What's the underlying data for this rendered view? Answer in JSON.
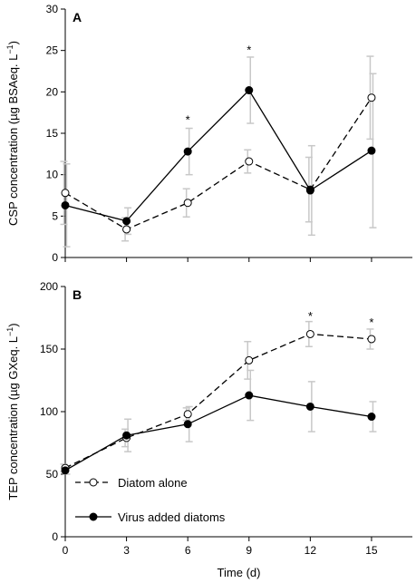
{
  "chart_data": [
    {
      "panel": "A",
      "type": "line",
      "ylabel_main": "CSP concentration (µg BSAeq. L",
      "ylabel_sup": "−1",
      "ylabel_tail": ")",
      "ylim": [
        0,
        30
      ],
      "yticks": [
        0,
        5,
        10,
        15,
        20,
        25,
        30
      ],
      "x": [
        0,
        3,
        6,
        9,
        12,
        15
      ],
      "series": [
        {
          "name": "Diatom alone",
          "marker": "open-circle",
          "line": "dashed",
          "values": [
            7.8,
            3.4,
            6.6,
            11.6,
            8.2,
            19.3
          ],
          "errors": [
            3.8,
            1.4,
            1.7,
            1.4,
            3.9,
            5.0
          ]
        },
        {
          "name": "Virus added diatoms",
          "marker": "filled-circle",
          "line": "solid",
          "values": [
            6.3,
            4.4,
            12.8,
            20.2,
            8.1,
            12.9
          ],
          "errors": [
            5.0,
            1.6,
            2.8,
            4.0,
            5.4,
            9.3
          ]
        }
      ],
      "significance": [
        {
          "x": 6,
          "y": 16.6,
          "text": "*"
        },
        {
          "x": 9,
          "y": 25.0,
          "text": "*"
        }
      ]
    },
    {
      "panel": "B",
      "type": "line",
      "ylabel_main": "TEP concentration (µg GXeq. L",
      "ylabel_sup": "−1",
      "ylabel_tail": ")",
      "xlabel": "Time (d)",
      "ylim": [
        0,
        200
      ],
      "yticks": [
        0,
        50,
        100,
        150,
        200
      ],
      "x": [
        0,
        3,
        6,
        9,
        12,
        15
      ],
      "series": [
        {
          "name": "Diatom alone",
          "marker": "open-circle",
          "line": "dashed",
          "values": [
            55,
            79,
            98,
            141,
            162,
            158
          ],
          "errors": [
            3,
            7,
            5,
            15,
            10,
            8
          ]
        },
        {
          "name": "Virus added diatoms",
          "marker": "filled-circle",
          "line": "solid",
          "values": [
            53,
            81,
            90,
            113,
            104,
            96
          ],
          "errors": [
            3,
            13,
            14,
            20,
            20,
            12
          ]
        }
      ],
      "significance": [
        {
          "x": 12,
          "y": 176,
          "text": "*"
        },
        {
          "x": 15,
          "y": 171,
          "text": "*"
        }
      ]
    }
  ],
  "xticks": [
    0,
    3,
    6,
    9,
    12,
    15
  ],
  "xlim": [
    0,
    17
  ],
  "legend": {
    "placement": "lower-left of panel B",
    "entries": [
      "Diatom alone",
      "Virus added diatoms"
    ]
  },
  "colors": {
    "line": "#000000",
    "errorbar": "#c8c8c8",
    "open_fill": "#ffffff"
  }
}
